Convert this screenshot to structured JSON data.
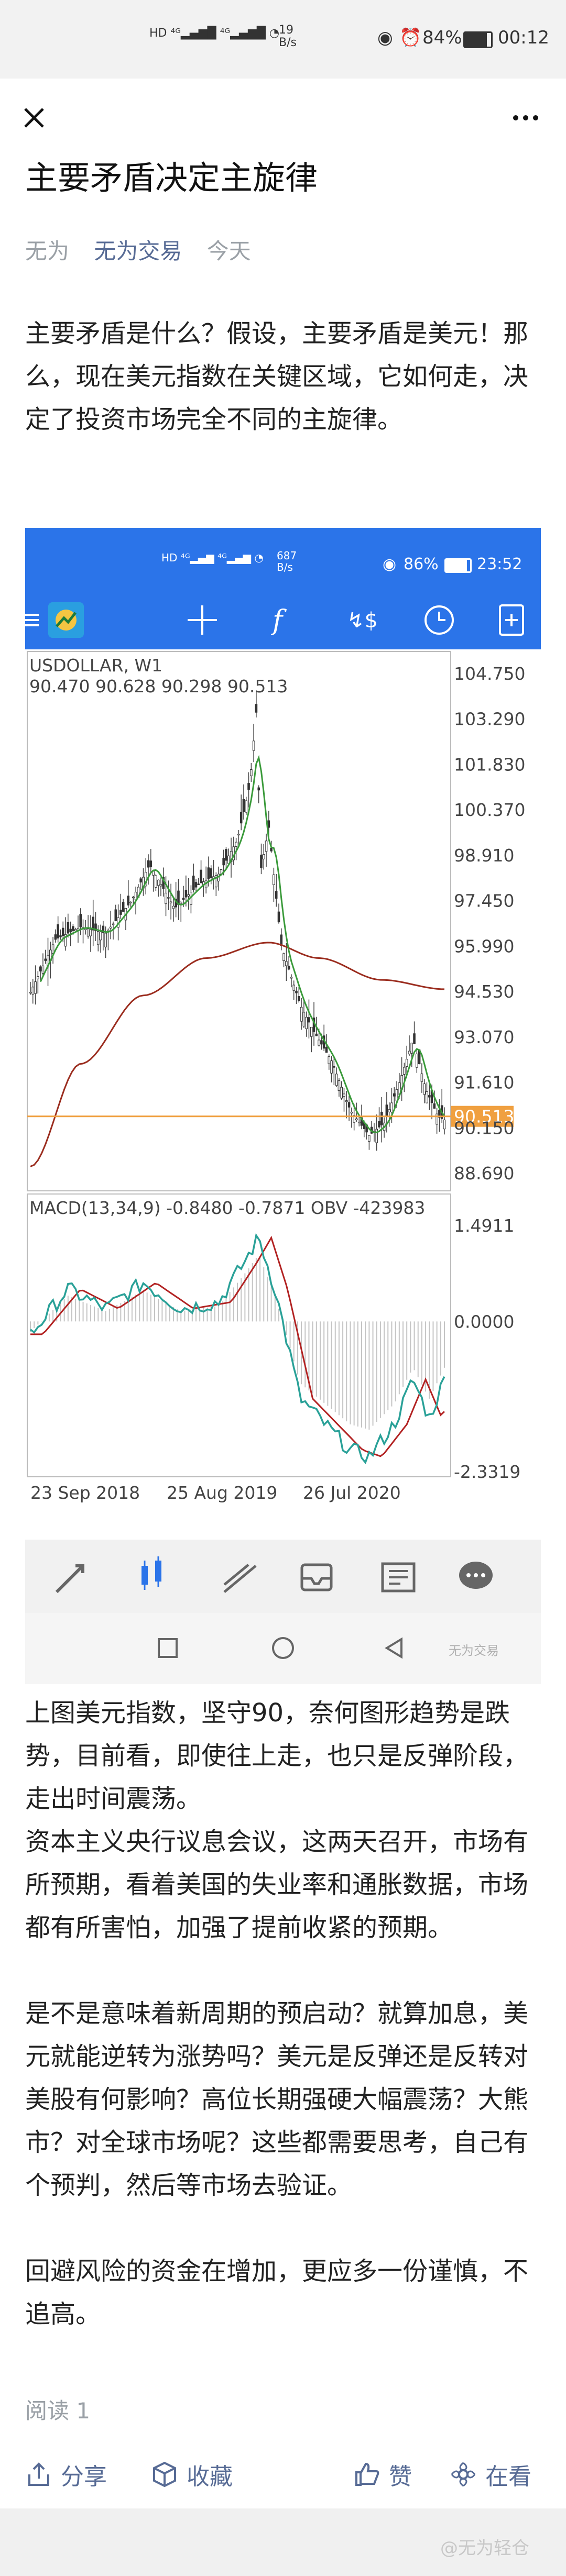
{
  "status_bar": {
    "speed": "19",
    "speed_unit": "B/s",
    "battery": "84%",
    "time": "00:12"
  },
  "article": {
    "title": "主要矛盾决定主旋律",
    "author": "无为",
    "account": "无为交易",
    "date": "今天",
    "intro": "主要矛盾是什么？假设，主要矛盾是美元！那么，现在美元指数在关键区域，它如何走，决定了投资市场完全不同的主旋律。",
    "para1": "上图美元指数，坚守90，奈何图形趋势是跌势，目前看，即使往上走，也只是反弹阶段，走出时间震荡。",
    "para2": "资本主义央行议息会议，这两天召开，市场有所预期，看着美国的失业率和通胀数据，市场都有所害怕，加强了提前收紧的预期。",
    "para3": "是不是意味着新周期的预启动？就算加息，美元就能逆转为涨势吗？美元是反弹还是反转对美股有何影响？高位长期强硬大幅震荡？大熊市？对全球市场呢？这些都需要思考，自己有个预判，然后等市场去验证。",
    "para4": "回避风险的资金在增加，更应多一份谨慎，不追高。"
  },
  "embedded": {
    "status": {
      "speed": "687",
      "speed_unit": "B/s",
      "battery": "86%",
      "time": "23:52"
    },
    "watermark": "无为交易"
  },
  "chart_data": [
    {
      "type": "candlestick",
      "symbol": "USDOLLAR, W1",
      "ohlc_label": "90.470 90.628 90.298 90.513",
      "current_price": "90.513",
      "y_ticks": [
        "104.750",
        "103.290",
        "101.830",
        "100.370",
        "98.910",
        "97.450",
        "95.990",
        "94.530",
        "93.070",
        "91.610",
        "90.150",
        "88.690"
      ],
      "ylim": [
        88.69,
        104.75
      ],
      "colors": {
        "candles": "#333333",
        "ma_fast": "#3a9a3a",
        "ma_slow": "#9b2d1f",
        "price_line": "#f0a040"
      }
    },
    {
      "type": "line",
      "indicator_label": "MACD(13,34,9) -0.8480 -0.7871 OBV -423983",
      "y_ticks": [
        "1.4911",
        "0.0000",
        "-2.3319"
      ],
      "ylim": [
        -2.3319,
        1.4911
      ],
      "x_ticks": [
        "23 Sep 2018",
        "25 Aug 2019",
        "26 Jul 2020"
      ],
      "colors": {
        "line1": "#2aa198",
        "line2": "#b22222",
        "histogram": "#bdbdbd"
      }
    }
  ],
  "actions": {
    "share": "分享",
    "collect": "收藏",
    "like": "赞",
    "watching": "在看"
  },
  "read_count": "阅读 1",
  "bottom_watermark": "@无为轻仓"
}
